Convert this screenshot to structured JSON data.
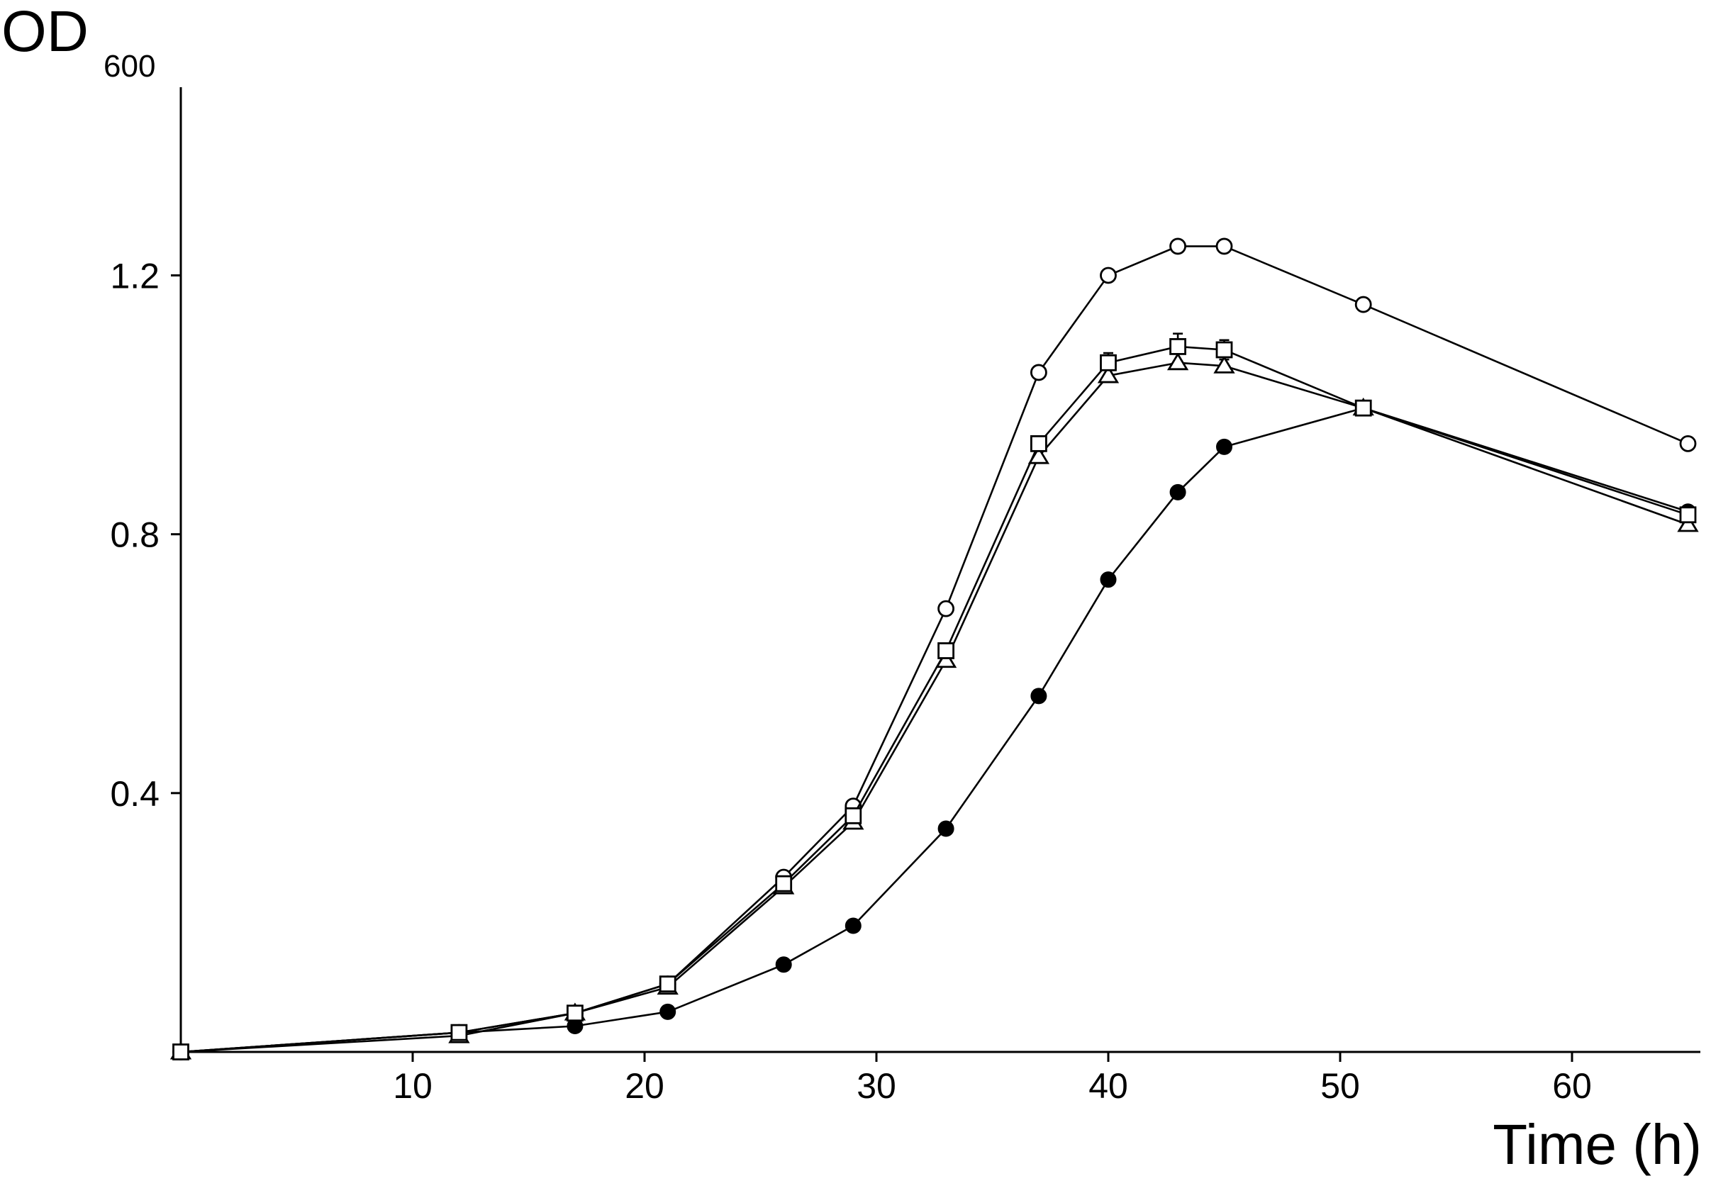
{
  "chart_data": {
    "type": "line",
    "ylabel": "OD",
    "ylabel_subscript": "600",
    "xlabel": "Time (h)",
    "xlim": [
      0,
      65
    ],
    "ylim": [
      0,
      1.25
    ],
    "x_ticks": [
      10,
      20,
      30,
      40,
      50,
      60
    ],
    "y_ticks": [
      0.4,
      0.8,
      1.2
    ],
    "x_tick_labels": [
      "10",
      "20",
      "30",
      "40",
      "50",
      "60"
    ],
    "y_tick_labels": [
      "0.4",
      "0.8",
      "1.2"
    ],
    "grid": false,
    "x": [
      0,
      12,
      17,
      21,
      26,
      29,
      33,
      37,
      40,
      43,
      45,
      51,
      65
    ],
    "series": [
      {
        "marker": "open-circle",
        "values": [
          0.0,
          0.03,
          0.06,
          0.105,
          0.27,
          0.38,
          0.685,
          1.05,
          1.2,
          1.245,
          1.245,
          1.155,
          0.94
        ],
        "errors": [
          0,
          0,
          0,
          0,
          0,
          0,
          0,
          0,
          0,
          0,
          0,
          0,
          0
        ]
      },
      {
        "marker": "open-square",
        "values": [
          0.0,
          0.03,
          0.06,
          0.105,
          0.26,
          0.365,
          0.62,
          0.94,
          1.065,
          1.09,
          1.085,
          0.995,
          0.83
        ],
        "errors": [
          0,
          0,
          0,
          0,
          0,
          0,
          0,
          0,
          0.015,
          0.02,
          0.015,
          0,
          0
        ]
      },
      {
        "marker": "open-triangle",
        "values": [
          0.0,
          0.025,
          0.06,
          0.1,
          0.255,
          0.355,
          0.605,
          0.92,
          1.045,
          1.065,
          1.06,
          0.995,
          0.815
        ],
        "errors": [
          0,
          0,
          0,
          0,
          0,
          0,
          0,
          0,
          0,
          0,
          0.01,
          0,
          0
        ]
      },
      {
        "marker": "filled-circle",
        "values": [
          0.0,
          0.03,
          0.04,
          0.062,
          0.135,
          0.195,
          0.345,
          0.55,
          0.73,
          0.865,
          0.935,
          0.995,
          0.835
        ],
        "errors": [
          0,
          0,
          0,
          0,
          0,
          0,
          0,
          0,
          0,
          0,
          0,
          0,
          0
        ]
      }
    ]
  }
}
